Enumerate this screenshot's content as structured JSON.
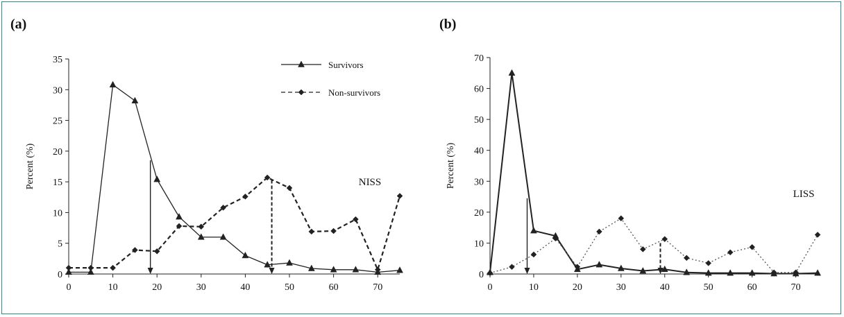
{
  "chart_data": [
    {
      "type": "line",
      "panel_label": "(a)",
      "ylabel": "Percent (%)",
      "xlabel": "",
      "annotation": "NISS",
      "xlim": [
        0,
        75
      ],
      "ylim": [
        0,
        35
      ],
      "xticks": [
        0,
        10,
        20,
        30,
        40,
        50,
        60,
        70
      ],
      "yticks": [
        0,
        5,
        10,
        15,
        20,
        25,
        30,
        35
      ],
      "legend_position": "top-center",
      "x": [
        0,
        5,
        10,
        15,
        20,
        25,
        30,
        35,
        40,
        45,
        50,
        55,
        60,
        65,
        70,
        75
      ],
      "series": [
        {
          "name": "Survivors",
          "marker": "triangle",
          "style": "solid",
          "values": [
            0.3,
            0.3,
            30.8,
            28.2,
            15.4,
            9.3,
            6.0,
            6.0,
            3.0,
            1.5,
            1.8,
            0.9,
            0.7,
            0.7,
            0.3,
            0.6
          ]
        },
        {
          "name": "Non-survivors",
          "marker": "diamond",
          "style": "dashed",
          "values": [
            1.0,
            1.0,
            1.0,
            3.9,
            3.7,
            7.8,
            7.7,
            10.8,
            12.6,
            15.7,
            14.0,
            6.9,
            7.0,
            8.9,
            0.7,
            12.7
          ]
        }
      ],
      "arrows": [
        {
          "style": "solid",
          "x": 18.5,
          "y_from": 18.5,
          "y_to": 0
        },
        {
          "style": "dashed",
          "x": 46,
          "y_from": 15.3,
          "y_to": 0
        }
      ]
    },
    {
      "type": "line",
      "panel_label": "(b)",
      "ylabel": "Percent (%)",
      "xlabel": "",
      "annotation": "LISS",
      "xlim": [
        0,
        75
      ],
      "ylim": [
        0,
        70
      ],
      "xticks": [
        0,
        10,
        20,
        30,
        40,
        50,
        60,
        70
      ],
      "yticks": [
        0,
        10,
        20,
        30,
        40,
        50,
        60,
        70
      ],
      "x": [
        0,
        5,
        10,
        15,
        20,
        25,
        30,
        35,
        40,
        45,
        50,
        55,
        60,
        65,
        70,
        75
      ],
      "series": [
        {
          "name": "Survivors",
          "marker": "triangle",
          "style": "solid",
          "values": [
            0.5,
            65.0,
            14.0,
            12.3,
            1.5,
            3.0,
            1.8,
            1.0,
            1.5,
            0.5,
            0.3,
            0.3,
            0.3,
            0.1,
            0.1,
            0.3
          ]
        },
        {
          "name": "Non-survivors",
          "marker": "diamond",
          "style": "dotted",
          "values": [
            0.3,
            2.3,
            6.3,
            11.5,
            2.3,
            13.7,
            18.0,
            8.0,
            11.3,
            5.2,
            3.5,
            7.0,
            8.7,
            0.5,
            0.5,
            12.7
          ]
        }
      ],
      "arrows": [
        {
          "style": "solid",
          "x": 8.5,
          "y_from": 24.5,
          "y_to": 0
        },
        {
          "style": "dashed",
          "x": 39,
          "y_from": 10,
          "y_to": 0
        }
      ]
    }
  ]
}
